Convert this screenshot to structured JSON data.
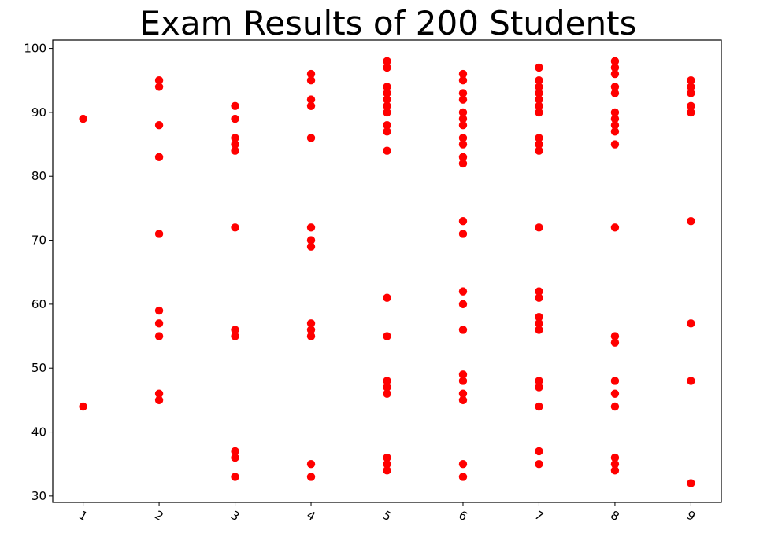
{
  "chart_data": {
    "type": "scatter",
    "title": "Exam Results of 200 Students",
    "xlabel": "",
    "ylabel": "",
    "xlim": [
      0.6,
      9.4
    ],
    "ylim": [
      29,
      101.3
    ],
    "x_ticks": [
      1,
      2,
      3,
      4,
      5,
      6,
      7,
      8,
      9
    ],
    "x_tick_labels": [
      "1",
      "2",
      "3",
      "4",
      "5",
      "6",
      "7",
      "8",
      "9"
    ],
    "x_tick_rotation": 30,
    "y_ticks": [
      30,
      40,
      50,
      60,
      70,
      80,
      90,
      100
    ],
    "y_tick_labels": [
      "30",
      "40",
      "50",
      "60",
      "70",
      "80",
      "90",
      "100"
    ],
    "grid": false,
    "legend": "none",
    "marker_color": "#ff0000",
    "series": [
      {
        "points": [
          {
            "x": 1,
            "y": 89
          },
          {
            "x": 1,
            "y": 44
          },
          {
            "x": 2,
            "y": 95
          },
          {
            "x": 2,
            "y": 94
          },
          {
            "x": 2,
            "y": 88
          },
          {
            "x": 2,
            "y": 83
          },
          {
            "x": 2,
            "y": 71
          },
          {
            "x": 2,
            "y": 59
          },
          {
            "x": 2,
            "y": 57
          },
          {
            "x": 2,
            "y": 55
          },
          {
            "x": 2,
            "y": 46
          },
          {
            "x": 2,
            "y": 45
          },
          {
            "x": 3,
            "y": 91
          },
          {
            "x": 3,
            "y": 89
          },
          {
            "x": 3,
            "y": 86
          },
          {
            "x": 3,
            "y": 85
          },
          {
            "x": 3,
            "y": 84
          },
          {
            "x": 3,
            "y": 72
          },
          {
            "x": 3,
            "y": 56
          },
          {
            "x": 3,
            "y": 55
          },
          {
            "x": 3,
            "y": 37
          },
          {
            "x": 3,
            "y": 36
          },
          {
            "x": 3,
            "y": 33
          },
          {
            "x": 4,
            "y": 96
          },
          {
            "x": 4,
            "y": 95
          },
          {
            "x": 4,
            "y": 92
          },
          {
            "x": 4,
            "y": 91
          },
          {
            "x": 4,
            "y": 86
          },
          {
            "x": 4,
            "y": 72
          },
          {
            "x": 4,
            "y": 70
          },
          {
            "x": 4,
            "y": 69
          },
          {
            "x": 4,
            "y": 57
          },
          {
            "x": 4,
            "y": 56
          },
          {
            "x": 4,
            "y": 55
          },
          {
            "x": 4,
            "y": 35
          },
          {
            "x": 4,
            "y": 33
          },
          {
            "x": 5,
            "y": 98
          },
          {
            "x": 5,
            "y": 97
          },
          {
            "x": 5,
            "y": 94
          },
          {
            "x": 5,
            "y": 93
          },
          {
            "x": 5,
            "y": 92
          },
          {
            "x": 5,
            "y": 91
          },
          {
            "x": 5,
            "y": 90
          },
          {
            "x": 5,
            "y": 88
          },
          {
            "x": 5,
            "y": 87
          },
          {
            "x": 5,
            "y": 84
          },
          {
            "x": 5,
            "y": 61
          },
          {
            "x": 5,
            "y": 55
          },
          {
            "x": 5,
            "y": 48
          },
          {
            "x": 5,
            "y": 47
          },
          {
            "x": 5,
            "y": 46
          },
          {
            "x": 5,
            "y": 36
          },
          {
            "x": 5,
            "y": 35
          },
          {
            "x": 5,
            "y": 34
          },
          {
            "x": 6,
            "y": 96
          },
          {
            "x": 6,
            "y": 95
          },
          {
            "x": 6,
            "y": 93
          },
          {
            "x": 6,
            "y": 92
          },
          {
            "x": 6,
            "y": 90
          },
          {
            "x": 6,
            "y": 89
          },
          {
            "x": 6,
            "y": 88
          },
          {
            "x": 6,
            "y": 86
          },
          {
            "x": 6,
            "y": 85
          },
          {
            "x": 6,
            "y": 83
          },
          {
            "x": 6,
            "y": 82
          },
          {
            "x": 6,
            "y": 73
          },
          {
            "x": 6,
            "y": 71
          },
          {
            "x": 6,
            "y": 62
          },
          {
            "x": 6,
            "y": 60
          },
          {
            "x": 6,
            "y": 56
          },
          {
            "x": 6,
            "y": 49
          },
          {
            "x": 6,
            "y": 48
          },
          {
            "x": 6,
            "y": 46
          },
          {
            "x": 6,
            "y": 45
          },
          {
            "x": 6,
            "y": 35
          },
          {
            "x": 6,
            "y": 33
          },
          {
            "x": 7,
            "y": 97
          },
          {
            "x": 7,
            "y": 95
          },
          {
            "x": 7,
            "y": 94
          },
          {
            "x": 7,
            "y": 93
          },
          {
            "x": 7,
            "y": 92
          },
          {
            "x": 7,
            "y": 91
          },
          {
            "x": 7,
            "y": 90
          },
          {
            "x": 7,
            "y": 86
          },
          {
            "x": 7,
            "y": 85
          },
          {
            "x": 7,
            "y": 84
          },
          {
            "x": 7,
            "y": 72
          },
          {
            "x": 7,
            "y": 62
          },
          {
            "x": 7,
            "y": 61
          },
          {
            "x": 7,
            "y": 58
          },
          {
            "x": 7,
            "y": 57
          },
          {
            "x": 7,
            "y": 56
          },
          {
            "x": 7,
            "y": 48
          },
          {
            "x": 7,
            "y": 47
          },
          {
            "x": 7,
            "y": 44
          },
          {
            "x": 7,
            "y": 37
          },
          {
            "x": 7,
            "y": 35
          },
          {
            "x": 8,
            "y": 98
          },
          {
            "x": 8,
            "y": 97
          },
          {
            "x": 8,
            "y": 96
          },
          {
            "x": 8,
            "y": 94
          },
          {
            "x": 8,
            "y": 93
          },
          {
            "x": 8,
            "y": 90
          },
          {
            "x": 8,
            "y": 89
          },
          {
            "x": 8,
            "y": 88
          },
          {
            "x": 8,
            "y": 87
          },
          {
            "x": 8,
            "y": 85
          },
          {
            "x": 8,
            "y": 72
          },
          {
            "x": 8,
            "y": 55
          },
          {
            "x": 8,
            "y": 54
          },
          {
            "x": 8,
            "y": 48
          },
          {
            "x": 8,
            "y": 46
          },
          {
            "x": 8,
            "y": 44
          },
          {
            "x": 8,
            "y": 36
          },
          {
            "x": 8,
            "y": 35
          },
          {
            "x": 8,
            "y": 34
          },
          {
            "x": 9,
            "y": 95
          },
          {
            "x": 9,
            "y": 94
          },
          {
            "x": 9,
            "y": 93
          },
          {
            "x": 9,
            "y": 91
          },
          {
            "x": 9,
            "y": 90
          },
          {
            "x": 9,
            "y": 73
          },
          {
            "x": 9,
            "y": 57
          },
          {
            "x": 9,
            "y": 48
          },
          {
            "x": 9,
            "y": 32
          }
        ]
      }
    ]
  }
}
